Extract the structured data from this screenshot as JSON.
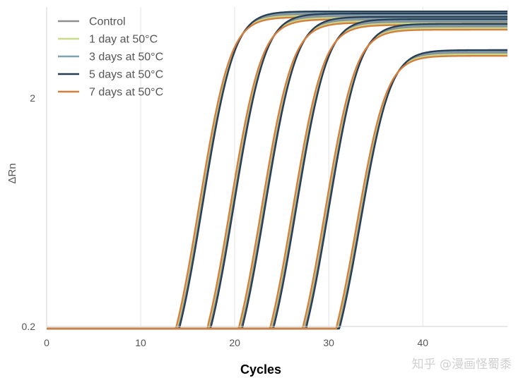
{
  "chart_data": {
    "type": "line",
    "title": "",
    "xlabel": "Cycles",
    "ylabel": "ΔRn",
    "xlim": [
      0,
      49
    ],
    "ylim": [
      0.2,
      5.0
    ],
    "yscale": "log",
    "x_ticks": [
      0,
      10,
      20,
      30,
      40
    ],
    "y_ticks": [
      {
        "value": 0.2,
        "label": "0.2"
      },
      {
        "value": 2,
        "label": "2"
      }
    ],
    "grid": "vertical lines at x ticks",
    "legend_position": "top-left",
    "legend": [
      {
        "name": "Control",
        "color": "#8f8f8f"
      },
      {
        "name": "1 day at 50°C",
        "color": "#c6dc8c"
      },
      {
        "name": "3 days at 50°C",
        "color": "#7fa1b4"
      },
      {
        "name": "5 days at 50°C",
        "color": "#283e55"
      },
      {
        "name": "7 days at 50°C",
        "color": "#d47f3e"
      }
    ],
    "dilution_groups": [
      {
        "midpoint_cycle": 18.9,
        "plateau": 4.55
      },
      {
        "midpoint_cycle": 22.2,
        "plateau": 4.45
      },
      {
        "midpoint_cycle": 25.5,
        "plateau": 4.3
      },
      {
        "midpoint_cycle": 28.8,
        "plateau": 4.2
      },
      {
        "midpoint_cycle": 32.2,
        "plateau": 4.0
      },
      {
        "midpoint_cycle": 35.4,
        "plateau": 3.05
      }
    ],
    "curve_growth_rate": 0.77
  },
  "watermark": "知乎 @漫画怪蜀黍"
}
